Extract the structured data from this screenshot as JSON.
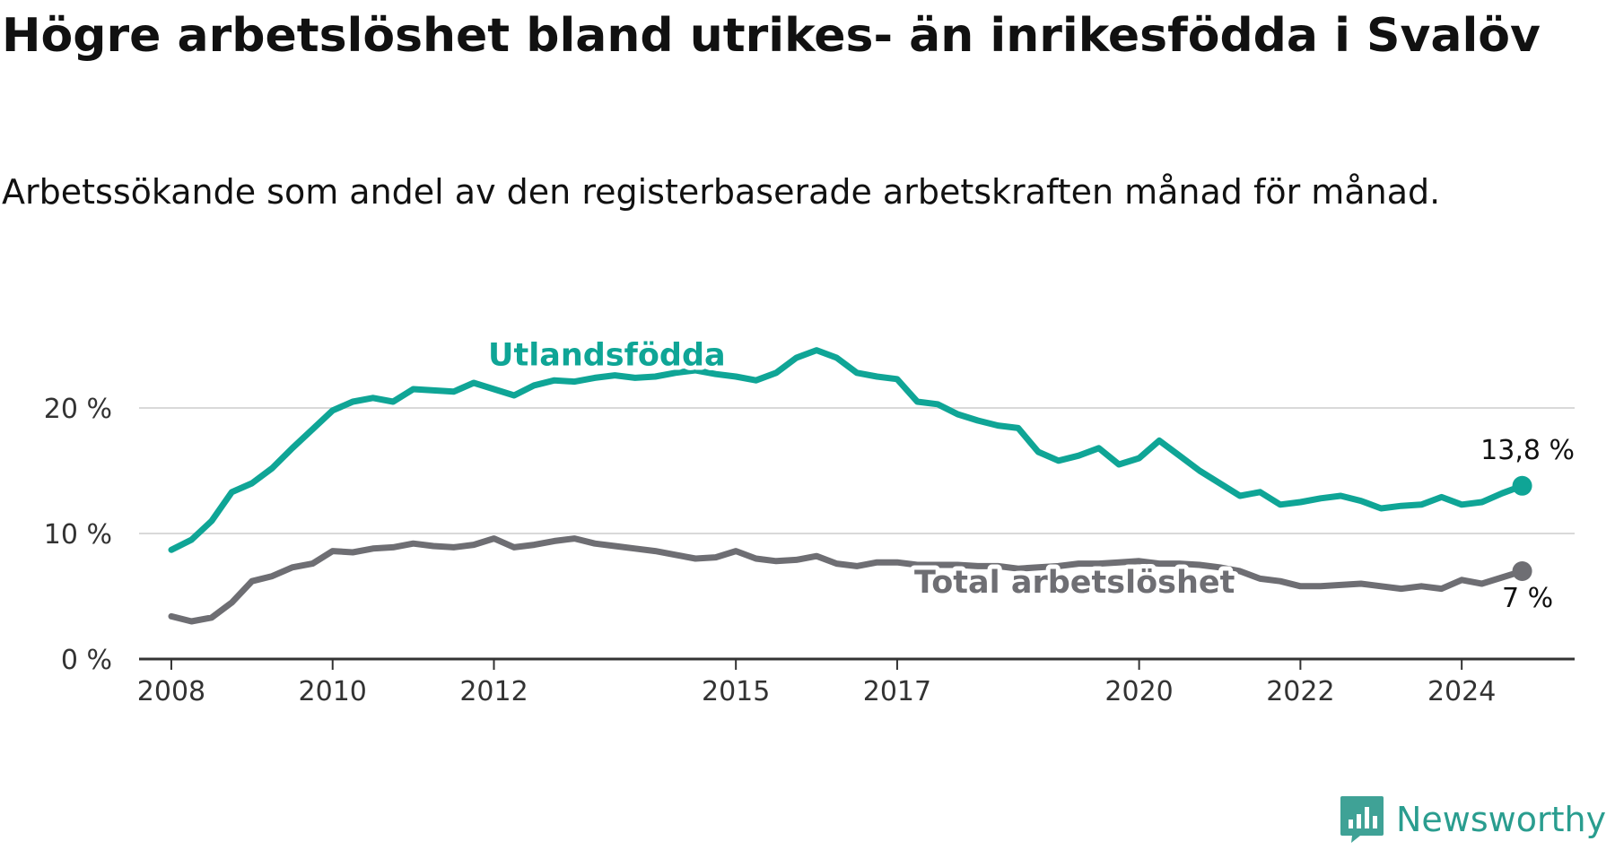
{
  "title": "Högre arbetslöshet bland utrikes- än inrikesfödda i Svalöv",
  "subtitle": "Arbetssökande som andel av den registerbaserade arbetskraften månad för månad.",
  "brand": {
    "name": "Newsworthy",
    "icon": "newsworthy-logo-icon",
    "color": "#3fa296"
  },
  "chart_data": {
    "type": "line",
    "title": "Högre arbetslöshet bland utrikes- än inrikesfödda i Svalöv",
    "subtitle": "Arbetssökande som andel av den registerbaserade arbetskraften månad för månad.",
    "xlabel": "",
    "ylabel": "",
    "xlim": [
      2007.6,
      2025.4
    ],
    "ylim": [
      0,
      25
    ],
    "grid": true,
    "x_ticks": [
      {
        "value": 2008,
        "label": "2008"
      },
      {
        "value": 2010,
        "label": "2010"
      },
      {
        "value": 2012,
        "label": "2012"
      },
      {
        "value": 2015,
        "label": "2015"
      },
      {
        "value": 2017,
        "label": "2017"
      },
      {
        "value": 2020,
        "label": "2020"
      },
      {
        "value": 2022,
        "label": "2022"
      },
      {
        "value": 2024,
        "label": "2024"
      }
    ],
    "y_ticks": [
      {
        "value": 0,
        "label": "0 %"
      },
      {
        "value": 10,
        "label": "10 %"
      },
      {
        "value": 20,
        "label": "20 %"
      }
    ],
    "series": [
      {
        "name": "Utlandsfödda",
        "color": "#0fa596",
        "end_label": "13,8 %",
        "x": [
          2008.0,
          2008.25,
          2008.5,
          2008.75,
          2009.0,
          2009.25,
          2009.5,
          2009.75,
          2010.0,
          2010.25,
          2010.5,
          2010.75,
          2011.0,
          2011.25,
          2011.5,
          2011.75,
          2012.0,
          2012.25,
          2012.5,
          2012.75,
          2013.0,
          2013.25,
          2013.5,
          2013.75,
          2014.0,
          2014.25,
          2014.5,
          2014.75,
          2015.0,
          2015.25,
          2015.5,
          2015.75,
          2016.0,
          2016.25,
          2016.5,
          2016.75,
          2017.0,
          2017.25,
          2017.5,
          2017.75,
          2018.0,
          2018.25,
          2018.5,
          2018.75,
          2019.0,
          2019.25,
          2019.5,
          2019.75,
          2020.0,
          2020.25,
          2020.5,
          2020.75,
          2021.0,
          2021.25,
          2021.5,
          2021.75,
          2022.0,
          2022.25,
          2022.5,
          2022.75,
          2023.0,
          2023.25,
          2023.5,
          2023.75,
          2024.0,
          2024.25,
          2024.5,
          2024.75
        ],
        "y": [
          8.7,
          9.5,
          11.0,
          13.3,
          14.0,
          15.2,
          16.8,
          18.3,
          19.8,
          20.5,
          20.8,
          20.5,
          21.5,
          21.4,
          21.3,
          22.0,
          21.5,
          21.0,
          21.8,
          22.2,
          22.1,
          22.4,
          22.6,
          22.4,
          22.5,
          22.8,
          23.0,
          22.7,
          22.5,
          22.2,
          22.8,
          24.0,
          24.6,
          24.0,
          22.8,
          22.5,
          22.3,
          20.5,
          20.3,
          19.5,
          19.0,
          18.6,
          18.4,
          16.5,
          15.8,
          16.2,
          16.8,
          15.5,
          16.0,
          17.4,
          16.2,
          15.0,
          14.0,
          13.0,
          13.3,
          12.3,
          12.5,
          12.8,
          13.0,
          12.6,
          12.0,
          12.2,
          12.3,
          12.9,
          12.3,
          12.5,
          13.2,
          13.8
        ]
      },
      {
        "name": "Total arbetslöshet",
        "color": "#6e6e73",
        "end_label": "7 %",
        "x": [
          2008.0,
          2008.25,
          2008.5,
          2008.75,
          2009.0,
          2009.25,
          2009.5,
          2009.75,
          2010.0,
          2010.25,
          2010.5,
          2010.75,
          2011.0,
          2011.25,
          2011.5,
          2011.75,
          2012.0,
          2012.25,
          2012.5,
          2012.75,
          2013.0,
          2013.25,
          2013.5,
          2013.75,
          2014.0,
          2014.25,
          2014.5,
          2014.75,
          2015.0,
          2015.25,
          2015.5,
          2015.75,
          2016.0,
          2016.25,
          2016.5,
          2016.75,
          2017.0,
          2017.25,
          2017.5,
          2017.75,
          2018.0,
          2018.25,
          2018.5,
          2018.75,
          2019.0,
          2019.25,
          2019.5,
          2019.75,
          2020.0,
          2020.25,
          2020.5,
          2020.75,
          2021.0,
          2021.25,
          2021.5,
          2021.75,
          2022.0,
          2022.25,
          2022.5,
          2022.75,
          2023.0,
          2023.25,
          2023.5,
          2023.75,
          2024.0,
          2024.25,
          2024.5,
          2024.75
        ],
        "y": [
          3.4,
          3.0,
          3.3,
          4.5,
          6.2,
          6.6,
          7.3,
          7.6,
          8.6,
          8.5,
          8.8,
          8.9,
          9.2,
          9.0,
          8.9,
          9.1,
          9.6,
          8.9,
          9.1,
          9.4,
          9.6,
          9.2,
          9.0,
          8.8,
          8.6,
          8.3,
          8.0,
          8.1,
          8.6,
          8.0,
          7.8,
          7.9,
          8.2,
          7.6,
          7.4,
          7.7,
          7.7,
          7.5,
          7.5,
          7.5,
          7.4,
          7.4,
          7.2,
          7.3,
          7.4,
          7.6,
          7.6,
          7.7,
          7.8,
          7.6,
          7.6,
          7.5,
          7.3,
          7.0,
          6.4,
          6.2,
          5.8,
          5.8,
          5.9,
          6.0,
          5.8,
          5.6,
          5.8,
          5.6,
          6.3,
          6.0,
          6.5,
          7.0
        ]
      }
    ]
  }
}
